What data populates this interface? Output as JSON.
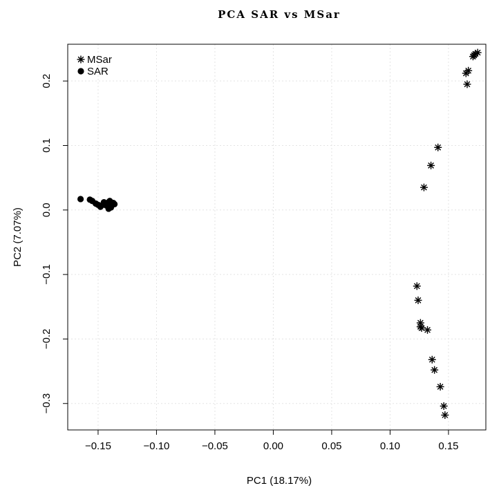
{
  "chart_data": {
    "type": "scatter",
    "title": "PCA SAR vs MSar",
    "xlabel": "PC1 (18.17%)",
    "ylabel": "PC2 (7.07%)",
    "xlim": [
      -0.176,
      0.182
    ],
    "ylim": [
      -0.341,
      0.257
    ],
    "xticks": [
      -0.15,
      -0.1,
      -0.05,
      0.0,
      0.05,
      0.1,
      0.15
    ],
    "xtick_labels": [
      "−0.15",
      "−0.10",
      "−0.05",
      "0.00",
      "0.05",
      "0.10",
      "0.15"
    ],
    "yticks": [
      -0.3,
      -0.2,
      -0.1,
      0.0,
      0.1,
      0.2
    ],
    "ytick_labels": [
      "−0.3",
      "−0.2",
      "−0.1",
      "0.0",
      "0.1",
      "0.2"
    ],
    "grid": true,
    "legend_position": "top-left",
    "series": [
      {
        "name": "MSar",
        "marker": "asterisk",
        "points": [
          [
            0.175,
            0.244
          ],
          [
            0.173,
            0.242
          ],
          [
            0.171,
            0.238
          ],
          [
            0.172,
            0.24
          ],
          [
            0.167,
            0.216
          ],
          [
            0.165,
            0.212
          ],
          [
            0.166,
            0.195
          ],
          [
            0.141,
            0.097
          ],
          [
            0.135,
            0.069
          ],
          [
            0.129,
            0.035
          ],
          [
            0.123,
            -0.118
          ],
          [
            0.124,
            -0.14
          ],
          [
            0.126,
            -0.175
          ],
          [
            0.126,
            -0.181
          ],
          [
            0.127,
            -0.183
          ],
          [
            0.132,
            -0.186
          ],
          [
            0.136,
            -0.232
          ],
          [
            0.138,
            -0.248
          ],
          [
            0.143,
            -0.274
          ],
          [
            0.146,
            -0.304
          ],
          [
            0.147,
            -0.318
          ]
        ]
      },
      {
        "name": "SAR",
        "marker": "filled-circle",
        "points": [
          [
            -0.165,
            0.017
          ],
          [
            -0.157,
            0.016
          ],
          [
            -0.155,
            0.014
          ],
          [
            -0.152,
            0.01
          ],
          [
            -0.15,
            0.008
          ],
          [
            -0.148,
            0.005
          ],
          [
            -0.146,
            0.008
          ],
          [
            -0.145,
            0.012
          ],
          [
            -0.144,
            0.01
          ],
          [
            -0.143,
            0.007
          ],
          [
            -0.142,
            0.009
          ],
          [
            -0.141,
            0.012
          ],
          [
            -0.14,
            0.006
          ],
          [
            -0.14,
            0.014
          ],
          [
            -0.139,
            0.004
          ],
          [
            -0.139,
            0.01
          ],
          [
            -0.138,
            0.008
          ],
          [
            -0.137,
            0.011
          ],
          [
            -0.136,
            0.009
          ],
          [
            -0.141,
            0.002
          ]
        ]
      }
    ]
  }
}
